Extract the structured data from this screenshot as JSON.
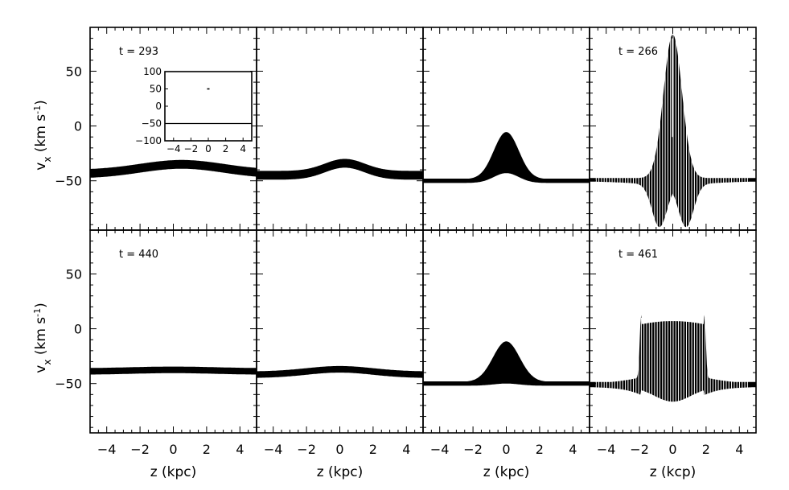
{
  "chart_data": {
    "type": "scatter",
    "layout": "2 rows x 4 columns, shared axes",
    "xlabels": [
      "z (kpc)",
      "z (kpc)",
      "z (kpc)",
      "z (kcp)"
    ],
    "ylabel": {
      "main": "v",
      "sub": "x",
      "unit_pre": " (km s",
      "unit_sup": "-1",
      "unit_post": ")"
    },
    "xlim": [
      -5,
      5
    ],
    "ylim": [
      -95,
      90
    ],
    "xticks": [
      -4,
      -2,
      0,
      2,
      4
    ],
    "yticks": [
      -50,
      0,
      50
    ],
    "panels": [
      {
        "row": 0,
        "col": 0,
        "label": "t = 293",
        "style": "band",
        "base": -44,
        "amp": 9,
        "width": 2.5,
        "center": 0.5,
        "thickness": 4
      },
      {
        "row": 0,
        "col": 1,
        "label": "",
        "style": "band",
        "base": -45,
        "amp": 11,
        "width": 1.2,
        "center": 0.3,
        "thickness": 4
      },
      {
        "row": 0,
        "col": 2,
        "label": "",
        "style": "double",
        "base": -50,
        "amp_top": 43,
        "amp_bottom": 33,
        "width": 0.75,
        "center": 0.0
      },
      {
        "row": 0,
        "col": 3,
        "label": "t = 266",
        "style": "oscillating",
        "base": -49,
        "peak": 82,
        "trough": -90,
        "width": 0.55,
        "trough_pos": 0.8
      },
      {
        "row": 1,
        "col": 0,
        "label": "t = 440",
        "style": "band",
        "base": -39,
        "amp": 1.5,
        "width": 2.5,
        "center": 0.0,
        "thickness": 3
      },
      {
        "row": 1,
        "col": 1,
        "label": "",
        "style": "band",
        "base": -42,
        "amp": 5,
        "width": 2.0,
        "center": 0.0,
        "thickness": 3
      },
      {
        "row": 1,
        "col": 2,
        "label": "",
        "style": "double",
        "base": -50,
        "amp_top": 37,
        "amp_bottom": 26,
        "width": 0.8,
        "center": 0.0
      },
      {
        "row": 1,
        "col": 3,
        "label": "t = 461",
        "style": "plateau",
        "base": -50,
        "top": 7,
        "bottom": -68,
        "half_width": 1.9
      }
    ],
    "inset": {
      "panel": 0,
      "xlim": [
        -5,
        5
      ],
      "ylim": [
        -100,
        100
      ],
      "xticks": [
        -4,
        -2,
        0,
        2,
        4
      ],
      "xtick_labels": [
        "-4",
        "-2",
        "0",
        "2",
        "4"
      ],
      "yticks": [
        100,
        50,
        0,
        -50,
        -100
      ],
      "line_y": -50,
      "dot": {
        "x": 0,
        "y": 50
      }
    }
  }
}
